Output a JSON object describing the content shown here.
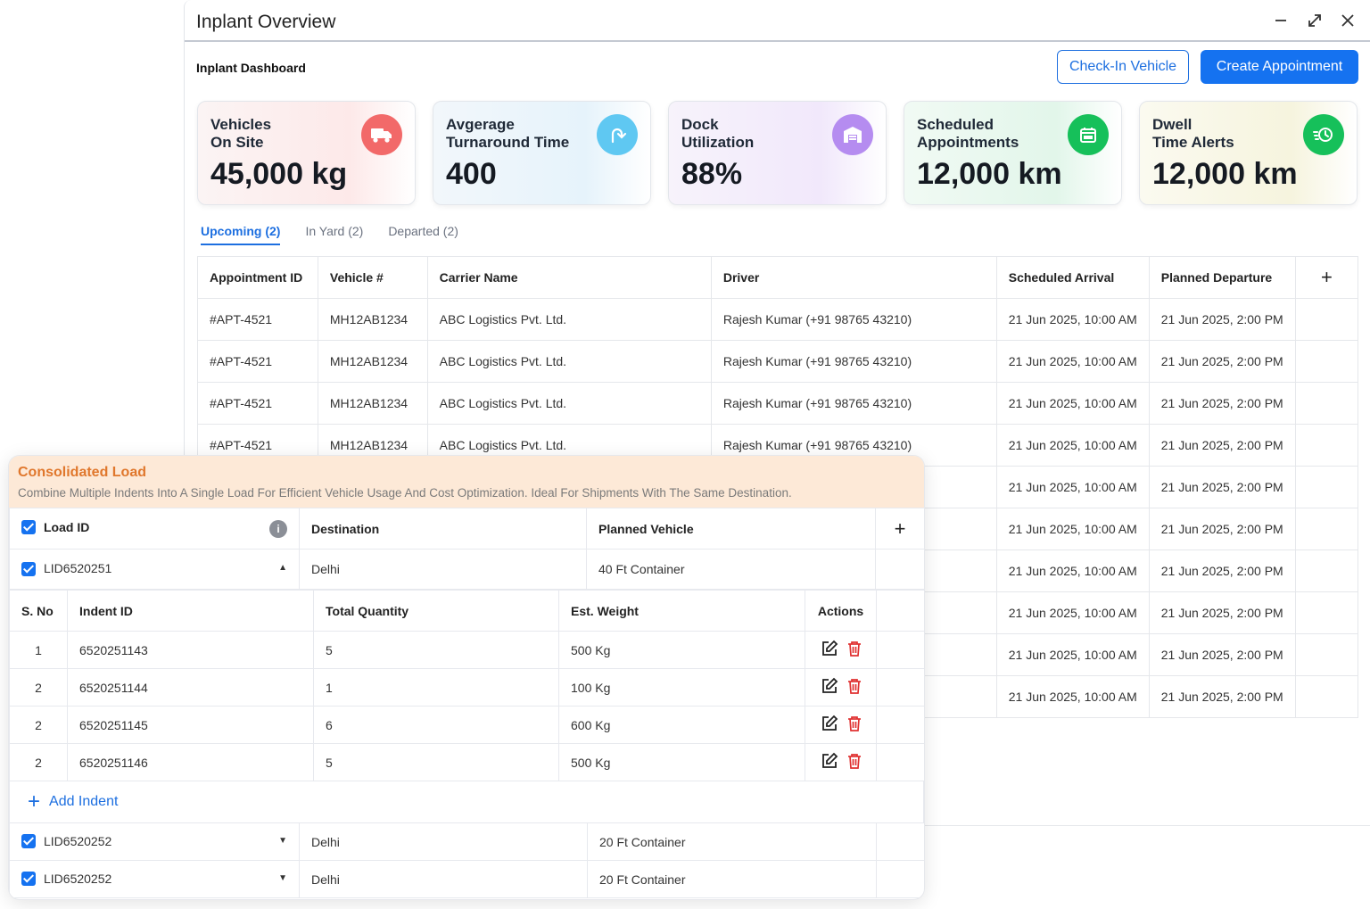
{
  "window": {
    "title": "Inplant Overview"
  },
  "dashboard": {
    "title": "Inplant Dashboard",
    "checkin_label": "Check-In Vehicle",
    "create_label": "Create Appointment"
  },
  "cards": [
    {
      "label": "Vehicles\nOn Site",
      "value": "45,000 kg",
      "icon": "truck-icon",
      "color": "#f26969"
    },
    {
      "label": "Avgerage\nTurnaround Time",
      "value": "400",
      "icon": "u-turn-icon",
      "color": "#5fc8f2"
    },
    {
      "label": "Dock\nUtilization",
      "value": "88%",
      "icon": "warehouse-icon",
      "color": "#b58cf0"
    },
    {
      "label": "Scheduled\nAppointments",
      "value": "12,000 km",
      "icon": "calendar-icon",
      "color": "#16c05a"
    },
    {
      "label": "Dwell\nTime Alerts",
      "value": "12,000 km",
      "icon": "clock-icon",
      "color": "#16c05a"
    }
  ],
  "tabs": [
    "Upcoming (2)",
    "In Yard (2)",
    "Departed (2)"
  ],
  "appointments": {
    "headers": [
      "Appointment ID",
      "Vehicle #",
      "Carrier Name",
      "Driver",
      "Scheduled Arrival",
      "Planned Departure",
      "+"
    ],
    "rows": [
      [
        "#APT-4521",
        "MH12AB1234",
        "ABC Logistics Pvt. Ltd.",
        "Rajesh Kumar (+91 98765 43210)",
        "21 Jun 2025, 10:00 AM",
        "21 Jun 2025, 2:00 PM"
      ],
      [
        "#APT-4521",
        "MH12AB1234",
        "ABC Logistics Pvt. Ltd.",
        "Rajesh Kumar (+91 98765 43210)",
        "21 Jun 2025, 10:00 AM",
        "21 Jun 2025, 2:00 PM"
      ],
      [
        "#APT-4521",
        "MH12AB1234",
        "ABC Logistics Pvt. Ltd.",
        "Rajesh Kumar (+91 98765 43210)",
        "21 Jun 2025, 10:00 AM",
        "21 Jun 2025, 2:00 PM"
      ],
      [
        "#APT-4521",
        "MH12AB1234",
        "ABC Logistics Pvt. Ltd.",
        "Rajesh Kumar (+91 98765 43210)",
        "21 Jun 2025, 10:00 AM",
        "21 Jun 2025, 2:00 PM"
      ],
      [
        "",
        "",
        "",
        "",
        "21 Jun 2025, 10:00 AM",
        "21 Jun 2025, 2:00 PM"
      ],
      [
        "",
        "",
        "",
        "",
        "21 Jun 2025, 10:00 AM",
        "21 Jun 2025, 2:00 PM"
      ],
      [
        "",
        "",
        "",
        "",
        "21 Jun 2025, 10:00 AM",
        "21 Jun 2025, 2:00 PM"
      ],
      [
        "",
        "",
        "",
        "",
        "21 Jun 2025, 10:00 AM",
        "21 Jun 2025, 2:00 PM"
      ],
      [
        "",
        "",
        "",
        "",
        "21 Jun 2025, 10:00 AM",
        "21 Jun 2025, 2:00 PM"
      ],
      [
        "",
        "",
        "",
        "",
        "21 Jun 2025, 10:00 AM",
        "21 Jun 2025, 2:00 PM"
      ]
    ]
  },
  "consolidated": {
    "title": "Consolidated Load",
    "subtitle": "Combine Multiple Indents Into A Single Load For Efficient Vehicle Usage And Cost Optimization. Ideal For Shipments With The Same Destination.",
    "headers": {
      "load_id": "Load ID",
      "destination": "Destination",
      "planned_vehicle": "Planned Vehicle",
      "add": "+"
    },
    "loads": [
      {
        "id": "LID6520251",
        "destination": "Delhi",
        "vehicle": "40 Ft Container"
      },
      {
        "id": "LID6520252",
        "destination": "Delhi",
        "vehicle": "20 Ft Container"
      },
      {
        "id": "LID6520252",
        "destination": "Delhi",
        "vehicle": "20 Ft Container"
      }
    ],
    "indent_headers": {
      "sno": "S. No",
      "indent": "Indent ID",
      "qty": "Total Quantity",
      "weight": "Est. Weight",
      "actions": "Actions"
    },
    "indents": [
      {
        "sno": "1",
        "id": "6520251143",
        "qty": "5",
        "weight": "500 Kg"
      },
      {
        "sno": "2",
        "id": "6520251144",
        "qty": "1",
        "weight": "100 Kg"
      },
      {
        "sno": "2",
        "id": "6520251145",
        "qty": "6",
        "weight": "600 Kg"
      },
      {
        "sno": "2",
        "id": "6520251146",
        "qty": "5",
        "weight": "500 Kg"
      }
    ],
    "add_indent_label": "Add Indent"
  }
}
